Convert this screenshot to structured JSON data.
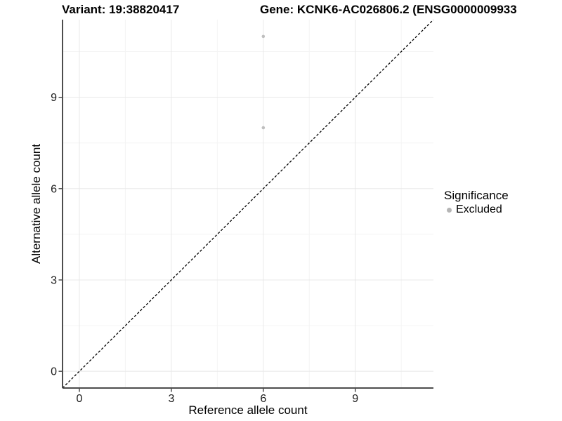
{
  "titles": {
    "left": "Variant: 19:38820417",
    "right": "Gene: KCNK6-AC026806.2 (ENSG0000009933"
  },
  "legend": {
    "title": "Significance",
    "items": [
      {
        "label": "Excluded",
        "color": "#b5b5b5"
      }
    ],
    "position": "right"
  },
  "chart_data": {
    "type": "scatter",
    "xlabel": "Reference allele count",
    "ylabel": "Alternative allele count",
    "xlim": [
      -0.55,
      11.55
    ],
    "ylim": [
      -0.55,
      11.55
    ],
    "xticks": [
      0,
      3,
      6,
      9
    ],
    "yticks": [
      0,
      3,
      6,
      9
    ],
    "xtick_labels": [
      "0",
      "3",
      "6",
      "9"
    ],
    "ytick_labels": [
      "0",
      "3",
      "6",
      "9"
    ],
    "xminor": [
      1.5,
      4.5,
      7.5,
      10.5
    ],
    "yminor": [
      1.5,
      4.5,
      7.5,
      10.5
    ],
    "grid": true,
    "legend_position": "right",
    "series": [
      {
        "name": "Excluded",
        "color": "#bfbfbf",
        "point_radius": 2.3,
        "points": [
          [
            6,
            11
          ],
          [
            6,
            8
          ]
        ]
      }
    ],
    "identity_line": {
      "slope": 1,
      "intercept": 0,
      "style": "dashed",
      "color": "#000000"
    }
  },
  "colors": {
    "background": "#ffffff",
    "grid_major": "#e8e8e8",
    "grid_minor": "#f4f4f4",
    "axis_line": "#4d4d4d",
    "tick_mark": "#333333",
    "tick_label": "#1a1a1a",
    "axis_title": "#000000"
  }
}
